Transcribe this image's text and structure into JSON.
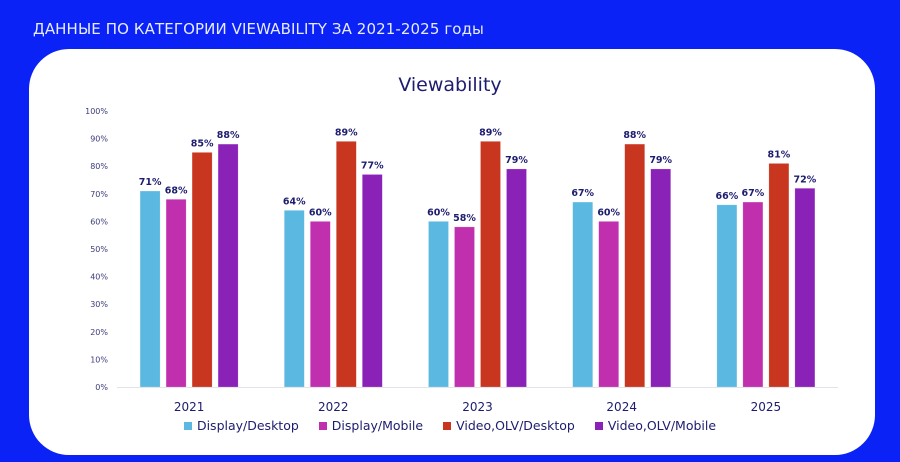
{
  "page": {
    "title": "ДАННЫЕ ПО КАТЕГОРИИ VIEWABILITY ЗА 2021-2025 годы"
  },
  "chart_data": {
    "type": "bar",
    "title": "Viewability",
    "xlabel": "",
    "ylabel": "",
    "categories": [
      "2021",
      "2022",
      "2023",
      "2024",
      "2025"
    ],
    "ylim": [
      0,
      100
    ],
    "yticks": [
      0,
      10,
      20,
      30,
      40,
      50,
      60,
      70,
      80,
      90,
      100
    ],
    "ytick_suffix": "%",
    "grid": false,
    "legend_position": "bottom",
    "series": [
      {
        "name": "Display/Desktop",
        "color": "#5bb8e0",
        "values": [
          71,
          64,
          60,
          67,
          66
        ]
      },
      {
        "name": "Display/Mobile",
        "color": "#c02fae",
        "values": [
          68,
          60,
          58,
          60,
          67
        ]
      },
      {
        "name": "Video,OLV/Desktop",
        "color": "#c9361f",
        "values": [
          85,
          89,
          89,
          88,
          81
        ]
      },
      {
        "name": "Video,OLV/Mobile",
        "color": "#8a22b8",
        "values": [
          88,
          77,
          79,
          79,
          72
        ]
      }
    ],
    "data_label_suffix": "%"
  },
  "colors": {
    "background": "#0a22f5",
    "card": "#ffffff",
    "text_dark": "#1d1c6e",
    "axis_text": "#3b3b7a",
    "axis_line": "#e2e2e8"
  }
}
